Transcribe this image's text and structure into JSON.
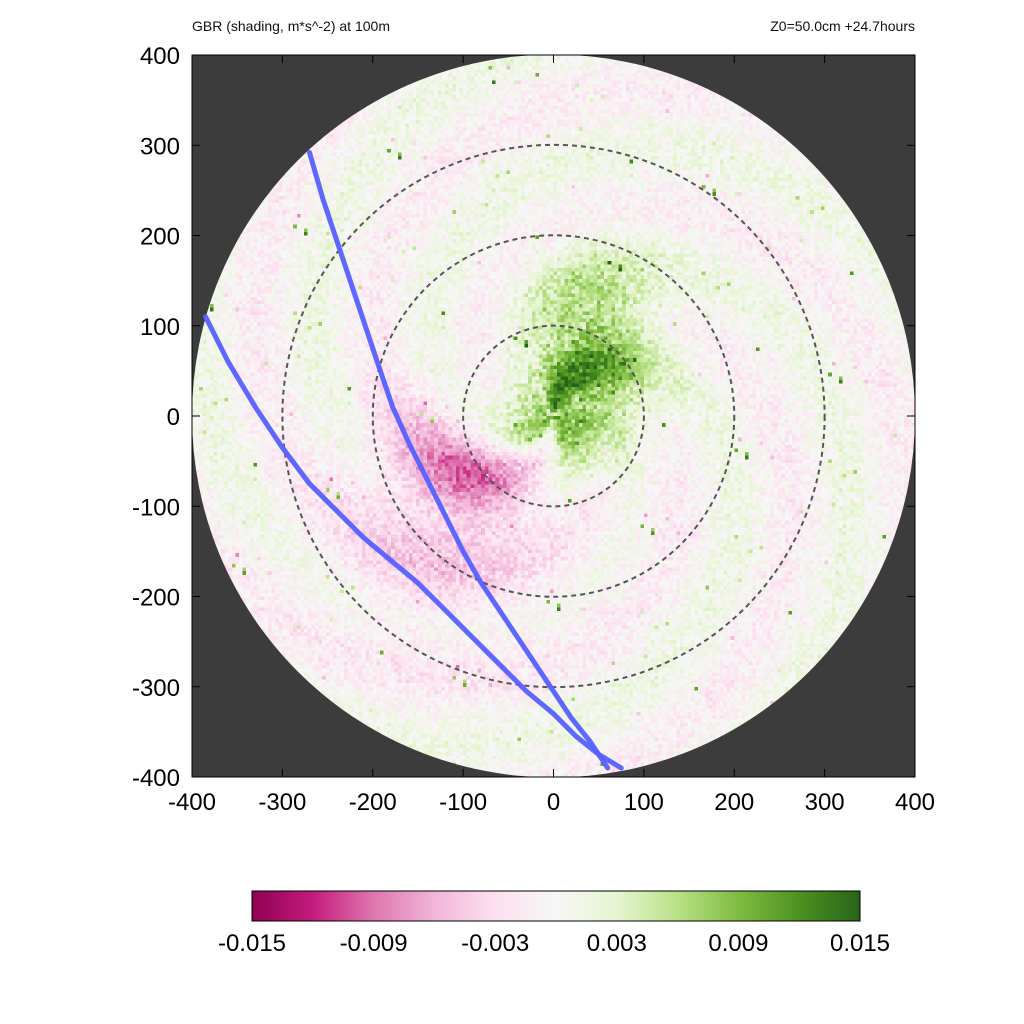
{
  "chart_data": {
    "type": "heatmap",
    "title": "GBR (shading, m*s^-2) at 100m",
    "subtitle": "Z0=50.0cm  +24.7hours",
    "xlabel": "",
    "ylabel": "",
    "xlim": [
      -400,
      400
    ],
    "ylim": [
      -400,
      400
    ],
    "x_ticks": [
      -400,
      -300,
      -200,
      -100,
      0,
      100,
      200,
      300,
      400
    ],
    "y_ticks": [
      -400,
      -300,
      -200,
      -100,
      0,
      100,
      200,
      300,
      400
    ],
    "domain_radius": 400,
    "background_color": "#3c3c3c",
    "range_rings": {
      "radii": [
        100,
        200,
        300
      ],
      "style": "dashed",
      "color": "#555555"
    },
    "colorbar": {
      "min": -0.015,
      "max": 0.015,
      "ticks": [
        "-0.015",
        "-0.009",
        "-0.003",
        "0.003",
        "0.009",
        "0.015"
      ],
      "colormap": "PiYG",
      "colors": [
        "#8e0152",
        "#c51b7d",
        "#de77ae",
        "#f1b6da",
        "#fde0ef",
        "#f7f7f7",
        "#e6f5d0",
        "#b8e186",
        "#7fbc41",
        "#4d9221",
        "#276419"
      ]
    },
    "field_pattern": [
      {
        "feature": "positive core",
        "x": 20,
        "y": 20,
        "radius": 75,
        "value": 0.013
      },
      {
        "feature": "negative ring",
        "x": -40,
        "y": -30,
        "radius": 140,
        "value": -0.006
      },
      {
        "feature": "negative band",
        "x": -120,
        "y": -130,
        "radius": 120,
        "value": -0.004
      },
      {
        "feature": "positive arc",
        "x": 50,
        "y": 120,
        "radius": 70,
        "value": 0.005
      },
      {
        "feature": "outer noise",
        "x": 0,
        "y": 0,
        "radius": 400,
        "value": 0.002
      }
    ],
    "series": [
      {
        "color": "#5560ff",
        "x": [
          -270,
          -255,
          -235,
          -215,
          -195,
          -178,
          -160,
          -140,
          -120,
          -100,
          -80,
          -60,
          -40,
          -20,
          0,
          20,
          40,
          60
        ],
        "y": [
          292,
          240,
          180,
          120,
          60,
          10,
          -30,
          -70,
          -110,
          -150,
          -185,
          -215,
          -245,
          -275,
          -305,
          -335,
          -360,
          -390
        ]
      },
      {
        "color": "#5560ff",
        "x": [
          -385,
          -360,
          -330,
          -300,
          -270,
          -240,
          -210,
          -180,
          -150,
          -120,
          -90,
          -60,
          -30,
          0,
          25,
          50,
          75
        ],
        "y": [
          110,
          60,
          10,
          -35,
          -75,
          -105,
          -135,
          -160,
          -185,
          -215,
          -245,
          -275,
          -305,
          -330,
          -355,
          -375,
          -390
        ]
      }
    ]
  }
}
